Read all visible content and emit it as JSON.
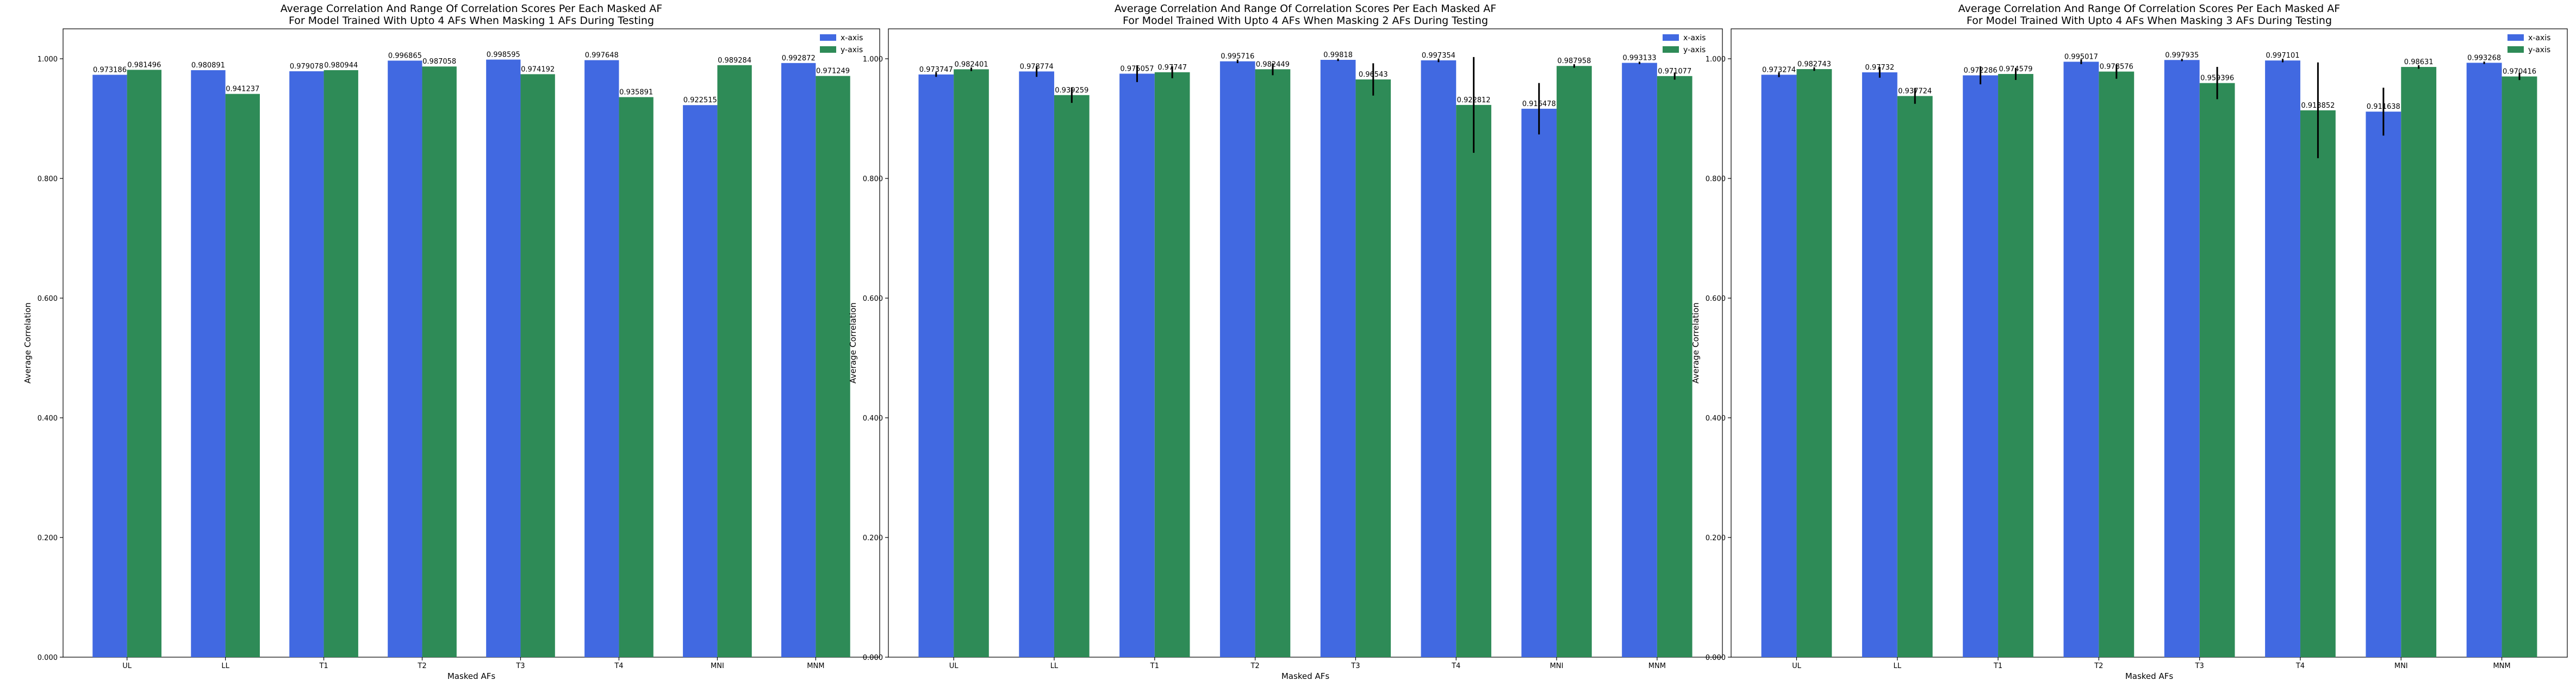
{
  "chart_data": [
    {
      "type": "bar",
      "title": "Average Correlation And Range Of Correlation Scores Per Each Masked AF",
      "subtitle": "For Model Trained With Upto 4 AFs When Masking 1 AFs During Testing",
      "xlabel": "Masked AFs",
      "ylabel": "Average Correlation",
      "ylim": [
        0,
        1.05
      ],
      "yticks": [
        "0.000",
        "0.200",
        "0.400",
        "0.600",
        "0.800",
        "1.000"
      ],
      "grid": false,
      "legend_position": "top-right",
      "categories": [
        "UL",
        "LL",
        "T1",
        "T2",
        "T3",
        "T4",
        "MNI",
        "MNM"
      ],
      "series": [
        {
          "name": "x-axis",
          "color": "#4169e1",
          "values": [
            0.973186,
            0.980891,
            0.979078,
            0.996865,
            0.998595,
            0.997648,
            0.922515,
            0.992872
          ],
          "labels": [
            "0.973186",
            "0.980891",
            "0.979078",
            "0.996865",
            "0.998595",
            "0.997648",
            "0.922515",
            "0.992872"
          ],
          "err": [
            0,
            0,
            0,
            0,
            0,
            0,
            0,
            0
          ]
        },
        {
          "name": "y-axis",
          "color": "#2e8b57",
          "values": [
            0.981496,
            0.941237,
            0.980944,
            0.987058,
            0.974192,
            0.935891,
            0.989284,
            0.971249
          ],
          "labels": [
            "0.981496",
            "0.941237",
            "0.980944",
            "0.987058",
            "0.974192",
            "0.935891",
            "0.989284",
            "0.971249"
          ],
          "err": [
            0,
            0,
            0,
            0,
            0,
            0,
            0,
            0
          ]
        }
      ]
    },
    {
      "type": "bar",
      "title": "Average Correlation And Range Of Correlation Scores Per Each Masked AF",
      "subtitle": "For Model Trained With Upto 4 AFs When Masking 2 AFs During Testing",
      "xlabel": "Masked AFs",
      "ylabel": "Average Correlation",
      "ylim": [
        0,
        1.05
      ],
      "yticks": [
        "0.000",
        "0.200",
        "0.400",
        "0.600",
        "0.800",
        "1.000"
      ],
      "grid": false,
      "legend_position": "top-right",
      "categories": [
        "UL",
        "LL",
        "T1",
        "T2",
        "T3",
        "T4",
        "MNI",
        "MNM"
      ],
      "series": [
        {
          "name": "x-axis",
          "color": "#4169e1",
          "values": [
            0.973747,
            0.978774,
            0.975057,
            0.995716,
            0.99818,
            0.997354,
            0.916478,
            0.993133
          ],
          "labels": [
            "0.973747",
            "0.978774",
            "0.975057",
            "0.995716",
            "0.99818",
            "0.997354",
            "0.916478",
            "0.993133"
          ],
          "err": [
            0.004,
            0.009,
            0.014,
            0.003,
            0.002,
            0.003,
            0.043,
            0.002
          ]
        },
        {
          "name": "y-axis",
          "color": "#2e8b57",
          "values": [
            0.982401,
            0.939259,
            0.97747,
            0.982449,
            0.96543,
            0.922812,
            0.987958,
            0.971077
          ],
          "labels": [
            "0.982401",
            "0.939259",
            "0.97747",
            "0.982449",
            "0.96543",
            "0.922812",
            "0.987958",
            "0.971077"
          ],
          "err": [
            0.003,
            0.013,
            0.01,
            0.01,
            0.027,
            0.08,
            0.003,
            0.006
          ]
        }
      ]
    },
    {
      "type": "bar",
      "title": "Average Correlation And Range Of Correlation Scores Per Each Masked AF",
      "subtitle": "For Model Trained With Upto 4 AFs When Masking 3 AFs During Testing",
      "xlabel": "Masked AFs",
      "ylabel": "Average Correlation",
      "ylim": [
        0,
        1.05
      ],
      "yticks": [
        "0.000",
        "0.200",
        "0.400",
        "0.600",
        "0.800",
        "1.000"
      ],
      "grid": false,
      "legend_position": "top-right",
      "categories": [
        "UL",
        "LL",
        "T1",
        "T2",
        "T3",
        "T4",
        "MNI",
        "MNM"
      ],
      "series": [
        {
          "name": "x-axis",
          "color": "#4169e1",
          "values": [
            0.973274,
            0.97732,
            0.972286,
            0.995017,
            0.997935,
            0.997101,
            0.911638,
            0.993268
          ],
          "labels": [
            "0.973274",
            "0.97732",
            "0.972286",
            "0.995017",
            "0.997935",
            "0.997101",
            "0.911638",
            "0.993268"
          ],
          "err": [
            0.004,
            0.009,
            0.015,
            0.004,
            0.002,
            0.003,
            0.04,
            0.002
          ]
        },
        {
          "name": "y-axis",
          "color": "#2e8b57",
          "values": [
            0.982743,
            0.937724,
            0.974579,
            0.978576,
            0.959396,
            0.913852,
            0.98631,
            0.970416
          ],
          "labels": [
            "0.982743",
            "0.937724",
            "0.974579",
            "0.978576",
            "0.959396",
            "0.913852",
            "0.98631",
            "0.970416"
          ],
          "err": [
            0.003,
            0.013,
            0.01,
            0.012,
            0.027,
            0.08,
            0.003,
            0.006
          ]
        }
      ]
    }
  ]
}
